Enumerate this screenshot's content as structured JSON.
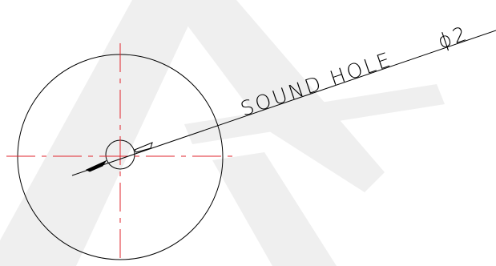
{
  "drawing": {
    "label_text": "SOUND HOLE",
    "dimension_text": "ϕ2",
    "colors": {
      "outline": "#000000",
      "centerline": "#e0242c",
      "watermark": "#eeeeee",
      "background": "#ffffff"
    }
  }
}
